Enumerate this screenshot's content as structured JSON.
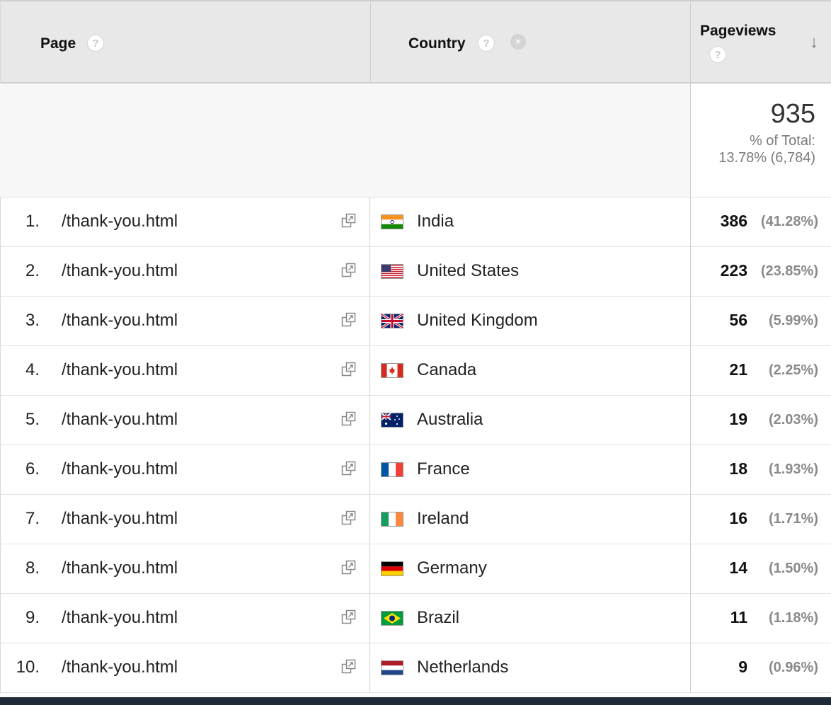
{
  "header": {
    "page_label": "Page",
    "country_label": "Country",
    "pageviews_label": "Pageviews",
    "help_glyph": "?",
    "remove_glyph": "✕",
    "sort_glyph": "↓"
  },
  "totals": {
    "value": "935",
    "pct_label": "% of Total:",
    "pct_value": "13.78% (6,784)"
  },
  "rows": [
    {
      "idx": "1.",
      "page": "/thank-you.html",
      "country": "India",
      "flag": "flag-india",
      "value": "386",
      "pct": "(41.28%)"
    },
    {
      "idx": "2.",
      "page": "/thank-you.html",
      "country": "United States",
      "flag": "flag-united-states",
      "value": "223",
      "pct": "(23.85%)"
    },
    {
      "idx": "3.",
      "page": "/thank-you.html",
      "country": "United Kingdom",
      "flag": "flag-united-kingdom",
      "value": "56",
      "pct": "(5.99%)"
    },
    {
      "idx": "4.",
      "page": "/thank-you.html",
      "country": "Canada",
      "flag": "flag-canada",
      "value": "21",
      "pct": "(2.25%)"
    },
    {
      "idx": "5.",
      "page": "/thank-you.html",
      "country": "Australia",
      "flag": "flag-australia",
      "value": "19",
      "pct": "(2.03%)"
    },
    {
      "idx": "6.",
      "page": "/thank-you.html",
      "country": "France",
      "flag": "flag-france",
      "value": "18",
      "pct": "(1.93%)"
    },
    {
      "idx": "7.",
      "page": "/thank-you.html",
      "country": "Ireland",
      "flag": "flag-ireland",
      "value": "16",
      "pct": "(1.71%)"
    },
    {
      "idx": "8.",
      "page": "/thank-you.html",
      "country": "Germany",
      "flag": "flag-germany",
      "value": "14",
      "pct": "(1.50%)"
    },
    {
      "idx": "9.",
      "page": "/thank-you.html",
      "country": "Brazil",
      "flag": "flag-brazil",
      "value": "11",
      "pct": "(1.18%)"
    },
    {
      "idx": "10.",
      "page": "/thank-you.html",
      "country": "Netherlands",
      "flag": "flag-netherlands",
      "value": "9",
      "pct": "(0.96%)"
    }
  ],
  "icons": {
    "open_link": "open-link-icon",
    "help": "help-icon",
    "remove": "remove-dimension-icon",
    "sort": "sort-descending-icon"
  }
}
